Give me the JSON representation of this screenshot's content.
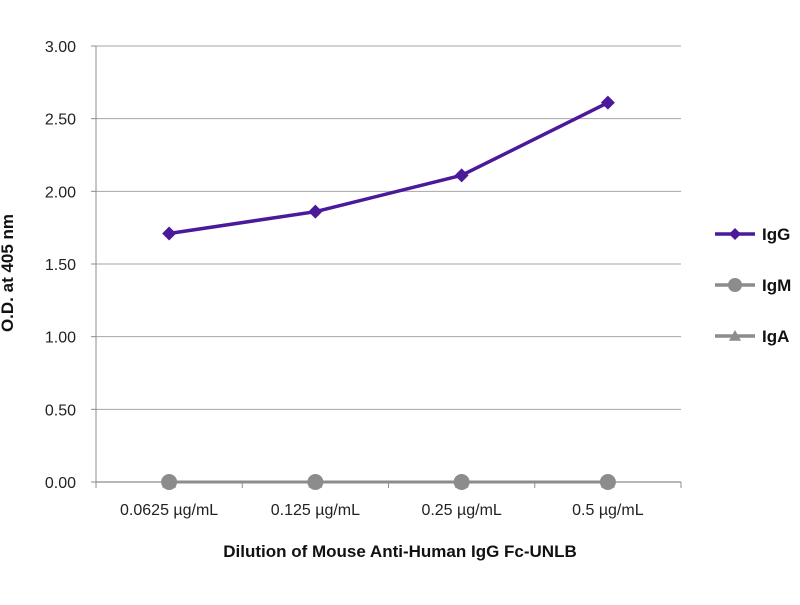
{
  "chart_data": {
    "type": "line",
    "title": "",
    "xlabel": "Dilution of Mouse Anti-Human IgG Fc-UNLB",
    "ylabel": "O.D. at 405 nm",
    "categories": [
      "0.0625 µg/mL",
      "0.125 µg/mL",
      "0.25 µg/mL",
      "0.5 µg/mL"
    ],
    "ylim": [
      0,
      3
    ],
    "yticks": [
      "0.00",
      "0.50",
      "1.00",
      "1.50",
      "2.00",
      "2.50",
      "3.00"
    ],
    "grid": true,
    "legend_position": "right",
    "series": [
      {
        "name": "IgG",
        "values": [
          1.71,
          1.86,
          2.11,
          2.61
        ],
        "color": "#4b1a9b",
        "marker": "diamond"
      },
      {
        "name": "IgM",
        "values": [
          0.0,
          0.0,
          0.0,
          0.0
        ],
        "color": "#8c8c8c",
        "marker": "circle"
      },
      {
        "name": "IgA",
        "values": [
          0.0,
          0.0,
          0.0,
          0.0
        ],
        "color": "#8c8c8c",
        "marker": "triangle"
      }
    ]
  }
}
